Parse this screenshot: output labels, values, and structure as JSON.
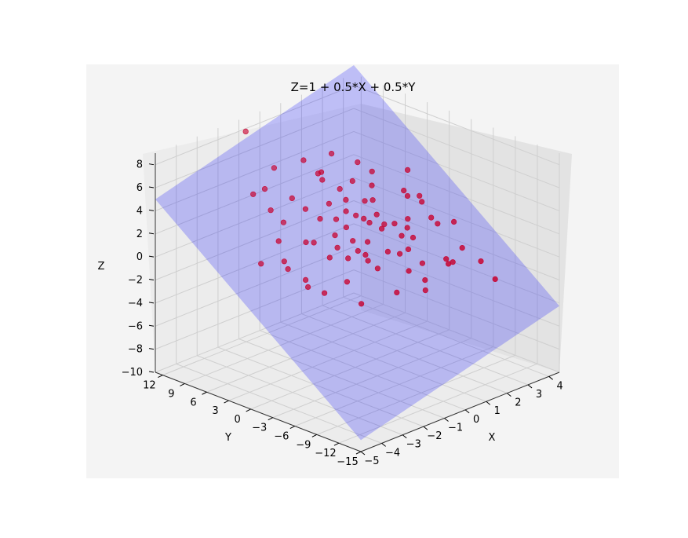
{
  "chart_data": {
    "type": "scatter",
    "title": "Z=1 + 0.5*X + 0.5*Y",
    "xlabel": "X",
    "ylabel": "Y",
    "zlabel": "Z",
    "x_ticks": [
      "−5",
      "−4",
      "−3",
      "−2",
      "−1",
      "0",
      "1",
      "2",
      "3",
      "4"
    ],
    "y_ticks": [
      "12",
      "9",
      "6",
      "3",
      "0",
      "−3",
      "−6",
      "−9",
      "−12",
      "−15"
    ],
    "z_ticks": [
      "8",
      "6",
      "4",
      "2",
      "0",
      "−2",
      "−4",
      "−6",
      "−8",
      "−10"
    ],
    "xlim": [
      -5,
      4.5
    ],
    "ylim": [
      -15,
      13
    ],
    "zlim": [
      -10,
      9
    ],
    "grid": true,
    "surface": {
      "equation": "Z=1 + 0.5*X + 0.5*Y",
      "color": "#0000ff",
      "opacity": 0.22
    },
    "points_color": "#c8002e",
    "points": [
      [
        -1.2,
        11.5,
        8.5
      ],
      [
        0.8,
        5.5,
        6.6
      ],
      [
        -0.5,
        3.2,
        6.5
      ],
      [
        0.4,
        6.2,
        5.0
      ],
      [
        2.0,
        3.4,
        4.7
      ],
      [
        1.5,
        2.0,
        4.2
      ],
      [
        -0.8,
        4.5,
        3.2
      ],
      [
        0.3,
        2.1,
        2.8
      ],
      [
        1.1,
        0.2,
        2.4
      ],
      [
        -1.5,
        5.5,
        2.3
      ],
      [
        2.8,
        -1.1,
        2.6
      ],
      [
        2.9,
        -0.5,
        2.9
      ],
      [
        -0.3,
        1.9,
        1.2
      ],
      [
        0.9,
        1.4,
        1.9
      ],
      [
        1.6,
        -0.8,
        1.5
      ],
      [
        -1.2,
        3.3,
        0.9
      ],
      [
        3.1,
        -2.4,
        0.8
      ],
      [
        0.2,
        0.9,
        0.6
      ],
      [
        -2.1,
        3.7,
        -0.2
      ],
      [
        1.7,
        -2.4,
        -0.4
      ],
      [
        2.6,
        -5.3,
        -1.6
      ],
      [
        0.4,
        -0.6,
        -0.9
      ],
      [
        -1.6,
        2.2,
        -1.8
      ],
      [
        3.3,
        -3.9,
        -2.3
      ],
      [
        1.9,
        -4.1,
        -2.8
      ],
      [
        -0.9,
        -3.4,
        -3.0
      ],
      [
        4.1,
        -7.4,
        -3.5
      ],
      [
        2.2,
        -3.3,
        -4.1
      ],
      [
        -0.4,
        5.9,
        6.8
      ],
      [
        -0.1,
        4.2,
        5.3
      ],
      [
        1.1,
        3.5,
        4.5
      ],
      [
        0.5,
        2.7,
        3.5
      ],
      [
        -1.9,
        6.1,
        3.5
      ],
      [
        1.4,
        1.6,
        3.1
      ],
      [
        -0.7,
        2.8,
        2.7
      ],
      [
        2.4,
        -0.3,
        3.2
      ],
      [
        0.1,
        1.5,
        1.7
      ],
      [
        1.2,
        -0.2,
        1.2
      ],
      [
        -1.1,
        2.5,
        1.0
      ],
      [
        2.0,
        -1.4,
        1.0
      ],
      [
        0.7,
        0.3,
        0.3
      ],
      [
        -0.2,
        0.4,
        -0.5
      ],
      [
        1.5,
        -1.8,
        -0.8
      ],
      [
        -1.7,
        1.6,
        -2.2
      ],
      [
        2.3,
        -2.6,
        -2.0
      ],
      [
        0.9,
        -3.1,
        -3.4
      ],
      [
        -2.6,
        6.5,
        5.3
      ],
      [
        -1.0,
        8.2,
        6.0
      ],
      [
        1.8,
        4.8,
        5.3
      ],
      [
        3.0,
        1.4,
        4.6
      ],
      [
        2.5,
        0.5,
        3.4
      ],
      [
        -2.4,
        3.6,
        1.8
      ],
      [
        -3.0,
        4.3,
        0.1
      ],
      [
        3.6,
        -3.2,
        0.8
      ],
      [
        0.0,
        -1.4,
        0.1
      ],
      [
        1.0,
        -1.6,
        -0.3
      ],
      [
        -0.6,
        -0.6,
        -2.0
      ],
      [
        2.7,
        -4.7,
        -1.4
      ],
      [
        0.6,
        3.8,
        4.1
      ],
      [
        1.3,
        2.4,
        2.9
      ],
      [
        -0.5,
        1.0,
        0.5
      ],
      [
        2.1,
        -1.9,
        0.2
      ],
      [
        0.2,
        0.2,
        -0.1
      ],
      [
        -1.4,
        0.2,
        -2.6
      ],
      [
        3.4,
        -4.9,
        -0.9
      ],
      [
        1.6,
        0.6,
        1.1
      ],
      [
        -1.3,
        4.9,
        4.4
      ],
      [
        0.7,
        1.9,
        2.2
      ],
      [
        2.2,
        -0.9,
        1.5
      ],
      [
        -0.8,
        1.2,
        -0.2
      ],
      [
        1.3,
        -3.6,
        -1.7
      ],
      [
        3.8,
        -6.3,
        -2.0
      ],
      [
        -2.2,
        2.9,
        -0.6
      ],
      [
        0.3,
        -2.2,
        -1.1
      ],
      [
        1.8,
        -1.2,
        0.4
      ],
      [
        -0.2,
        3.0,
        3.6
      ],
      [
        2.9,
        -2.1,
        1.4
      ],
      [
        1.0,
        0.9,
        1.6
      ],
      [
        -1.8,
        7.2,
        5.0
      ],
      [
        0.0,
        2.6,
        2.2
      ]
    ]
  }
}
